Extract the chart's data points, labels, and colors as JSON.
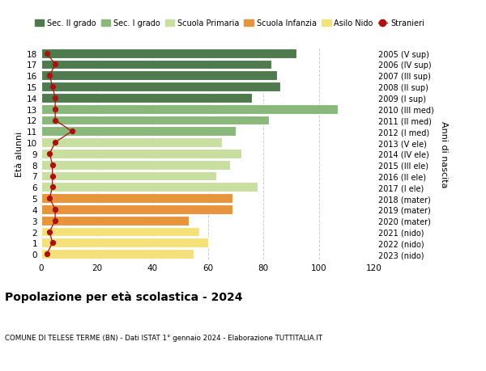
{
  "ages": [
    0,
    1,
    2,
    3,
    4,
    5,
    6,
    7,
    8,
    9,
    10,
    11,
    12,
    13,
    14,
    15,
    16,
    17,
    18
  ],
  "right_labels": [
    "2023 (nido)",
    "2022 (nido)",
    "2021 (nido)",
    "2020 (mater)",
    "2019 (mater)",
    "2018 (mater)",
    "2017 (I ele)",
    "2016 (II ele)",
    "2015 (III ele)",
    "2014 (IV ele)",
    "2013 (V ele)",
    "2012 (I med)",
    "2011 (II med)",
    "2010 (III med)",
    "2009 (I sup)",
    "2008 (II sup)",
    "2007 (III sup)",
    "2006 (IV sup)",
    "2005 (V sup)"
  ],
  "bar_values": [
    55,
    60,
    57,
    53,
    69,
    69,
    78,
    63,
    68,
    72,
    65,
    70,
    82,
    107,
    76,
    86,
    85,
    83,
    92
  ],
  "stranieri": [
    2,
    4,
    3,
    5,
    5,
    3,
    4,
    4,
    4,
    3,
    5,
    11,
    5,
    5,
    5,
    4,
    3,
    5,
    2
  ],
  "bar_colors": [
    "#f5e17a",
    "#f5e17a",
    "#f5e17a",
    "#e8943a",
    "#e8943a",
    "#e8943a",
    "#c8dfa0",
    "#c8dfa0",
    "#c8dfa0",
    "#c8dfa0",
    "#c8dfa0",
    "#8ab87a",
    "#8ab87a",
    "#8ab87a",
    "#4e7a4e",
    "#4e7a4e",
    "#4e7a4e",
    "#4e7a4e",
    "#4e7a4e"
  ],
  "legend_items": [
    {
      "label": "Sec. II grado",
      "color": "#4e7a4e"
    },
    {
      "label": "Sec. I grado",
      "color": "#8ab87a"
    },
    {
      "label": "Scuola Primaria",
      "color": "#c8dfa0"
    },
    {
      "label": "Scuola Infanzia",
      "color": "#e8943a"
    },
    {
      "label": "Asilo Nido",
      "color": "#f5e17a"
    },
    {
      "label": "Stranieri",
      "color": "#aa1111"
    }
  ],
  "ylabel_left": "Età alunni",
  "ylabel_right": "Anni di nascita",
  "title": "Popolazione per età scolastica - 2024",
  "subtitle": "COMUNE DI TELESE TERME (BN) - Dati ISTAT 1° gennaio 2024 - Elaborazione TUTTITALIA.IT",
  "xlim": [
    0,
    120
  ],
  "xticks": [
    0,
    20,
    40,
    60,
    80,
    100,
    120
  ],
  "background_color": "#ffffff",
  "grid_color": "#cccccc"
}
